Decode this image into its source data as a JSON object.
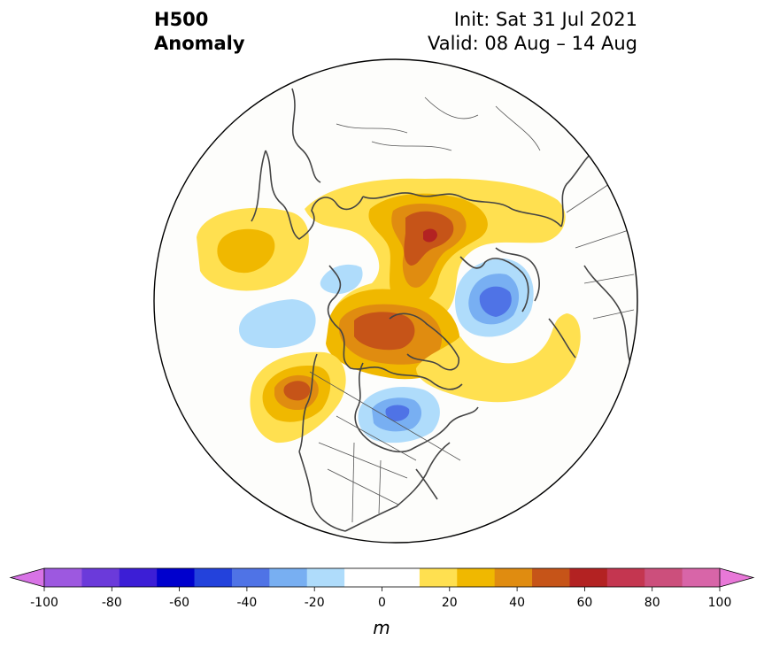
{
  "title": {
    "left_line1": "H500",
    "left_line2": "Anomaly",
    "right_line1": "Init: Sat 31 Jul 2021",
    "right_line2": "Valid: 08 Aug – 14 Aug"
  },
  "map": {
    "projection": "north-polar-stereographic",
    "field": "500 hPa geopotential height anomaly",
    "anomaly_regions": [
      {
        "region": "North Pacific / Gulf of Alaska",
        "sign": "positive",
        "peak_m": 30
      },
      {
        "region": "Bering Sea / eastern Siberia coast",
        "sign": "negative",
        "peak_m": -20
      },
      {
        "region": "Central Siberia / Kara Sea",
        "sign": "positive",
        "peak_m": 60
      },
      {
        "region": "Canadian Arctic Archipelago / Greenland",
        "sign": "positive",
        "peak_m": 50
      },
      {
        "region": "Western Canada / Pacific Northwest",
        "sign": "positive",
        "peak_m": 50
      },
      {
        "region": "Hudson Bay / Great Lakes",
        "sign": "negative",
        "peak_m": -30
      },
      {
        "region": "Scandinavia / Baltic",
        "sign": "negative",
        "peak_m": -50
      },
      {
        "region": "North Atlantic",
        "sign": "positive",
        "peak_m": 20
      }
    ]
  },
  "colorbar": {
    "unit": "m",
    "ticks": [
      "-100",
      "-80",
      "-60",
      "-40",
      "-20",
      "0",
      "20",
      "40",
      "60",
      "80",
      "100"
    ],
    "extend": "both",
    "colors": [
      "#9d58e0",
      "#6b3ada",
      "#3c1ed6",
      "#0000cd",
      "#2342dc",
      "#4f73e6",
      "#78aff2",
      "#afdcfb",
      "#ffffff",
      "#ffffff",
      "#ffe050",
      "#f0b800",
      "#e08c10",
      "#c65418",
      "#b32222",
      "#c43650",
      "#cc4f7c",
      "#d865a8"
    ],
    "extend_low_color": "#d873e6",
    "extend_high_color": "#e878d8"
  }
}
